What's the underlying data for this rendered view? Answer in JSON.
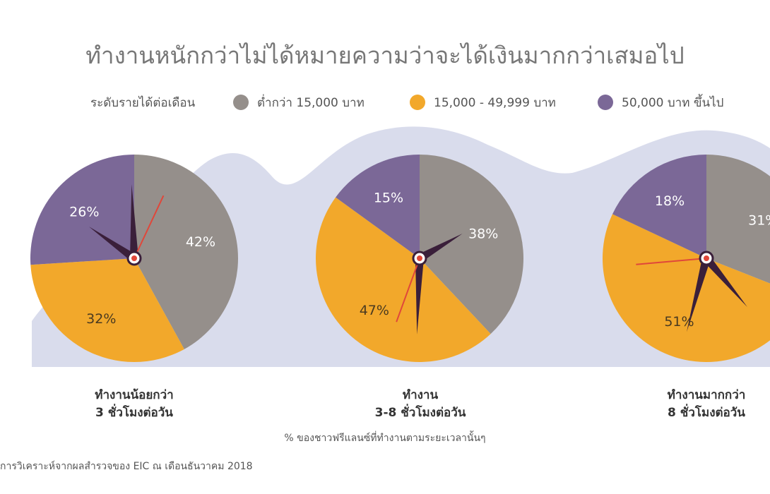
{
  "title": "ทำงานหนักกว่าไม่ได้หมายความว่าจะได้เงินมากกว่าเสมอไป",
  "legend": {
    "label": "ระดับรายได้ต่อเดือน",
    "items": [
      {
        "name": "ต่ำกว่า 15,000 บาท",
        "color": "#958f8b"
      },
      {
        "name": "15,000 - 49,999 บาท",
        "color": "#f2a82b"
      },
      {
        "name": "50,000 บาท ขึ้นไป",
        "color": "#7b6897"
      }
    ]
  },
  "colors": {
    "background_wave": "#d9dcec",
    "hand_dark": "#3a1f3a",
    "hand_red": "#e0473a"
  },
  "chart_data": [
    {
      "type": "pie",
      "caption_line1": "ทำงานน้อยกว่า",
      "caption_line2": "3 ชั่วโมงต่อวัน",
      "slices": [
        {
          "series": "ต่ำกว่า 15,000 บาท",
          "value": 42,
          "label": "42%"
        },
        {
          "series": "15,000 - 49,999 บาท",
          "value": 32,
          "label": "32%"
        },
        {
          "series": "50,000 บาท ขึ้นไป",
          "value": 26,
          "label": "26%"
        }
      ]
    },
    {
      "type": "pie",
      "caption_line1": "ทำงาน",
      "caption_line2": "3-8 ชั่วโมงต่อวัน",
      "slices": [
        {
          "series": "ต่ำกว่า 15,000 บาท",
          "value": 38,
          "label": "38%"
        },
        {
          "series": "15,000 - 49,999 บาท",
          "value": 47,
          "label": "47%"
        },
        {
          "series": "50,000 บาท ขึ้นไป",
          "value": 15,
          "label": "15%"
        }
      ]
    },
    {
      "type": "pie",
      "caption_line1": "ทำงานมากกว่า",
      "caption_line2": "8 ชั่วโมงต่อวัน",
      "slices": [
        {
          "series": "ต่ำกว่า 15,000 บาท",
          "value": 31,
          "label": "31%"
        },
        {
          "series": "15,000 - 49,999 บาท",
          "value": 51,
          "label": "51%"
        },
        {
          "series": "50,000 บาท ขึ้นไป",
          "value": 18,
          "label": "18%"
        }
      ]
    }
  ],
  "note": "% ของชาวฟรีแลนซ์ที่ทำงานตามระยะเวลานั้นๆ",
  "source": "การวิเคราะห์จากผลสำรวจของ EIC ณ เดือนธันวาคม 2018"
}
